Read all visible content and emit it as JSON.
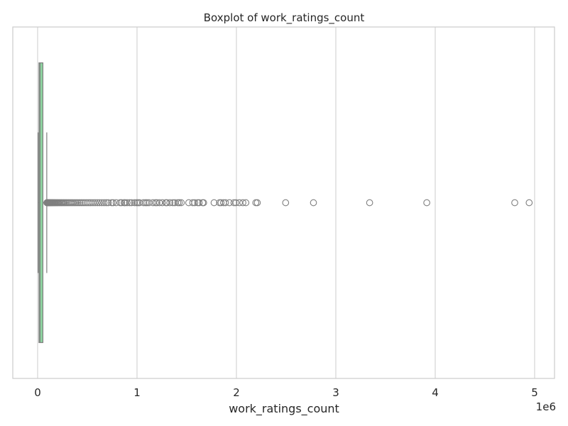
{
  "chart_data": {
    "type": "boxplot",
    "orientation": "horizontal",
    "title": "Boxplot of work_ratings_count",
    "xlabel": "work_ratings_count",
    "ylabel": "",
    "x_offset_label": "1e6",
    "xlim": [
      -250000,
      5200000
    ],
    "x_ticks": [
      0,
      1,
      2,
      3,
      4,
      5
    ],
    "x_tick_scale": 1000000,
    "grid": true,
    "grid_axis": "x",
    "colors": {
      "box_fill": "#8dd3a0",
      "box_edge": "#7f7f7f",
      "median": "#7f7f7f",
      "outlier_edge": "#7f7f7f",
      "grid": "#d4d4d4",
      "frame": "#cccccc"
    },
    "box": {
      "whisker_low": 5500,
      "q1": 13500,
      "median": 23800,
      "q3": 53000,
      "whisker_high": 92000
    },
    "outliers": [
      93000,
      95000,
      97000,
      99000,
      101000,
      104000,
      107000,
      110000,
      113000,
      117000,
      121000,
      125000,
      130000,
      135000,
      140000,
      146000,
      152000,
      158000,
      165000,
      172000,
      180000,
      188000,
      197000,
      206000,
      216000,
      226000,
      237000,
      248000,
      260000,
      272000,
      285000,
      298000,
      312000,
      326000,
      341000,
      356000,
      372000,
      388000,
      405000,
      422000,
      440000,
      458000,
      477000,
      496000,
      516000,
      536000,
      557000,
      578000,
      600000,
      622000,
      645000,
      668000,
      690000,
      710000,
      745000,
      760000,
      790000,
      830000,
      845000,
      870000,
      880000,
      900000,
      925000,
      945000,
      975000,
      995000,
      1010000,
      1025000,
      1065000,
      1085000,
      1100000,
      1120000,
      1160000,
      1185000,
      1200000,
      1225000,
      1255000,
      1290000,
      1300000,
      1330000,
      1360000,
      1380000,
      1410000,
      1425000,
      1445000,
      1520000,
      1560000,
      1580000,
      1610000,
      1625000,
      1660000,
      1670000,
      1775000,
      1830000,
      1845000,
      1870000,
      1890000,
      1930000,
      1975000,
      1995000,
      2030000,
      2065000,
      2095000,
      2195000,
      2210000,
      2495000,
      2775000,
      3340000,
      3915000,
      4800000,
      4945000
    ]
  }
}
